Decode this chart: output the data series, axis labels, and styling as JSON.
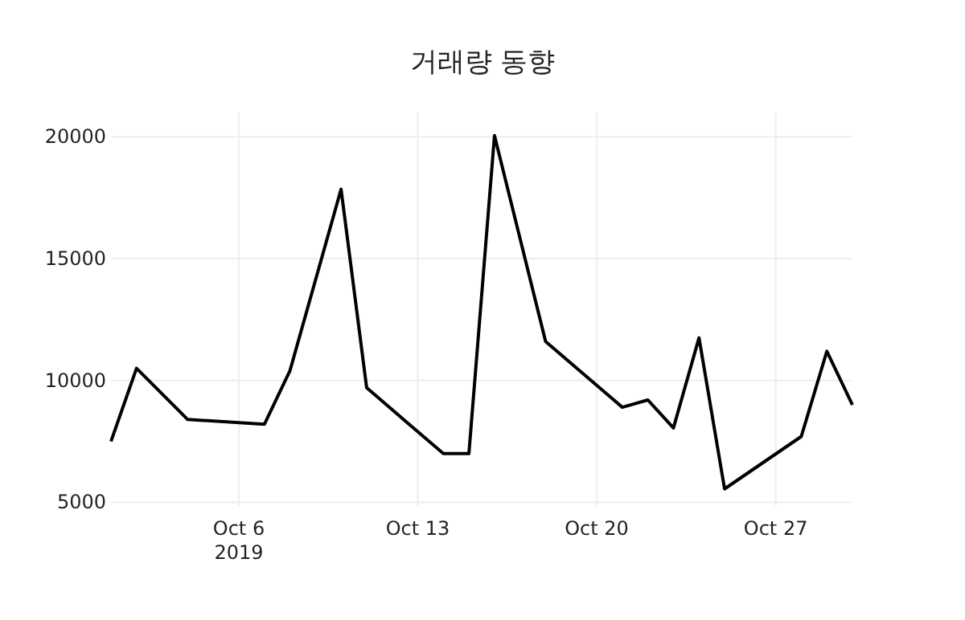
{
  "chart_data": {
    "type": "line",
    "title": "거래량 동향",
    "x": [
      "2019-10-01",
      "2019-10-02",
      "2019-10-04",
      "2019-10-07",
      "2019-10-08",
      "2019-10-10",
      "2019-10-11",
      "2019-10-14",
      "2019-10-15",
      "2019-10-16",
      "2019-10-18",
      "2019-10-21",
      "2019-10-22",
      "2019-10-23",
      "2019-10-24",
      "2019-10-25",
      "2019-10-28",
      "2019-10-29",
      "2019-10-30"
    ],
    "series": [
      {
        "color": "#000000",
        "values": [
          7500,
          10500,
          8400,
          8200,
          10400,
          17850,
          9700,
          7000,
          7000,
          20050,
          11600,
          8900,
          9200,
          8050,
          11750,
          5550,
          7700,
          11200,
          9000
        ]
      }
    ],
    "xlim": [
      "2019-10-01",
      "2019-10-30"
    ],
    "xticks": [
      {
        "value": "2019-10-06",
        "label": "Oct 6\n2019"
      },
      {
        "value": "2019-10-13",
        "label": "Oct 13"
      },
      {
        "value": "2019-10-20",
        "label": "Oct 20"
      },
      {
        "value": "2019-10-27",
        "label": "Oct 27"
      }
    ],
    "ylim": [
      4850,
      21000
    ],
    "yticks": [
      5000,
      10000,
      15000,
      20000
    ],
    "grid": true,
    "marker": "none",
    "line_style": "solid"
  }
}
